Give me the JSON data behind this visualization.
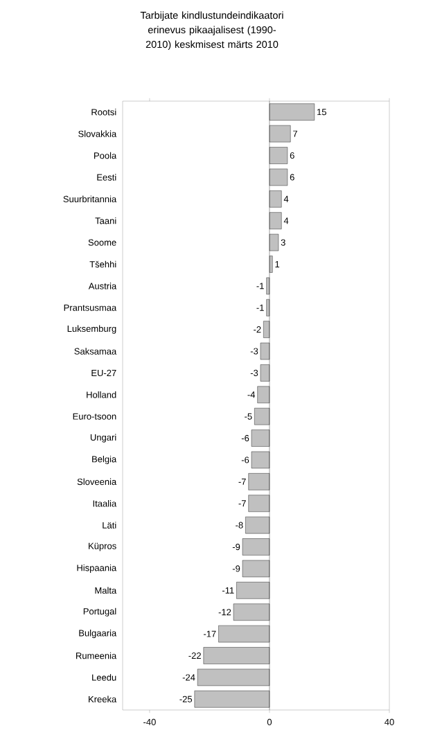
{
  "chart_data": {
    "type": "bar",
    "orientation": "horizontal",
    "title": "Tarbijate kindlustundeindikaatori erinevus pikaajalisest (1990-2010) keskmisest märts 2010",
    "categories": [
      "Rootsi",
      "Slovakkia",
      "Poola",
      "Eesti",
      "Suurbritannia",
      "Taani",
      "Soome",
      "Tšehhi",
      "Austria",
      "Prantsusmaa",
      "Luksemburg",
      "Saksamaa",
      "EU-27",
      "Holland",
      "Euro-tsoon",
      "Ungari",
      "Belgia",
      "Sloveenia",
      "Itaalia",
      "Läti",
      "Küpros",
      "Hispaania",
      "Malta",
      "Portugal",
      "Bulgaaria",
      "Rumeenia",
      "Leedu",
      "Kreeka"
    ],
    "values": [
      15,
      7,
      6,
      6,
      4,
      4,
      3,
      1,
      -1,
      -1,
      -2,
      -3,
      -3,
      -4,
      -5,
      -6,
      -6,
      -7,
      -7,
      -8,
      -9,
      -9,
      -11,
      -12,
      -17,
      -22,
      -24,
      -25
    ],
    "color": "#c0c0c0",
    "xlim": [
      -49,
      40
    ],
    "xticks": [
      -40,
      0,
      40
    ],
    "data_labels": true
  }
}
